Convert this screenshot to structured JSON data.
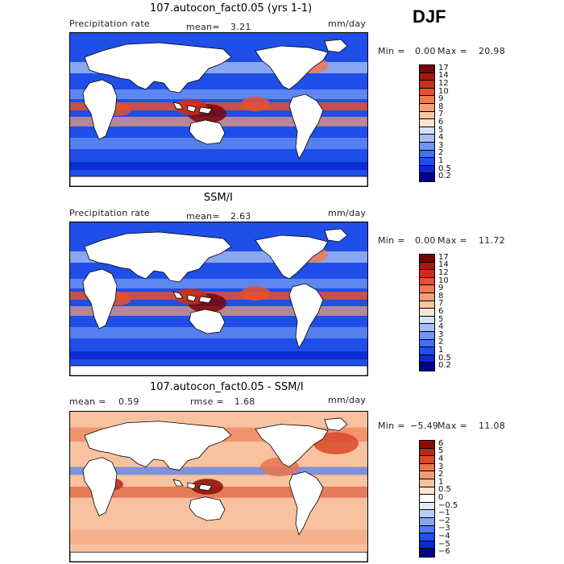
{
  "season": "DJF",
  "colors": {
    "precip_scale": [
      "#00008b",
      "#0a2ad0",
      "#1f4ee8",
      "#3d72f0",
      "#6e96f2",
      "#a4bdf3",
      "#d6e2f7",
      "#f9e6d2",
      "#f8c6a4",
      "#f5a07a",
      "#ef7a52",
      "#e4512f",
      "#c8301a",
      "#a51a0d",
      "#7d0404"
    ],
    "diff_scale": [
      "#00008b",
      "#0a2ad0",
      "#1f4ee8",
      "#4c7cf0",
      "#82a6f3",
      "#b9cdf6",
      "#e2ebf9",
      "#ffffff",
      "#fbe3d0",
      "#f8c2a0",
      "#f29c75",
      "#ea744d",
      "#d9492a",
      "#b82816",
      "#8b0c06"
    ]
  },
  "panels": [
    {
      "title": "107.autocon_fact0.05 (yrs 1-1)",
      "var_label": "Precipitation rate",
      "stat_label": "mean=",
      "stat_value": "3.21",
      "units": "mm/day",
      "min_label": "Min =",
      "min_value": "0.00",
      "max_label": "Max =",
      "max_value": "20.98",
      "levels": [
        "17",
        "14",
        "12",
        "10",
        "9",
        "8",
        "7",
        "6",
        "5",
        "4",
        "3",
        "2",
        "1",
        "0.5",
        "0.2"
      ]
    },
    {
      "title": "SSM/I",
      "var_label": "Precipitation rate",
      "stat_label": "mean=",
      "stat_value": "2.63",
      "units": "mm/day",
      "min_label": "Min =",
      "min_value": "0.00",
      "max_label": "Max =",
      "max_value": "11.72",
      "levels": [
        "17",
        "14",
        "12",
        "10",
        "9",
        "8",
        "7",
        "6",
        "5",
        "4",
        "3",
        "2",
        "1",
        "0.5",
        "0.2"
      ]
    },
    {
      "title": "107.autocon_fact0.05 - SSM/I",
      "mean_label": "mean =",
      "mean_value": "0.59",
      "rmse_label": "rmse =",
      "rmse_value": "1.68",
      "units": "mm/day",
      "min_label": "Min =",
      "min_value": "−5.49",
      "max_label": "Max =",
      "max_value": "11.08",
      "levels": [
        "6",
        "5",
        "4",
        "3",
        "2",
        "1",
        "0.5",
        "0",
        "−0.5",
        "−1",
        "−2",
        "−3",
        "−4",
        "−5",
        "−6"
      ]
    }
  ]
}
